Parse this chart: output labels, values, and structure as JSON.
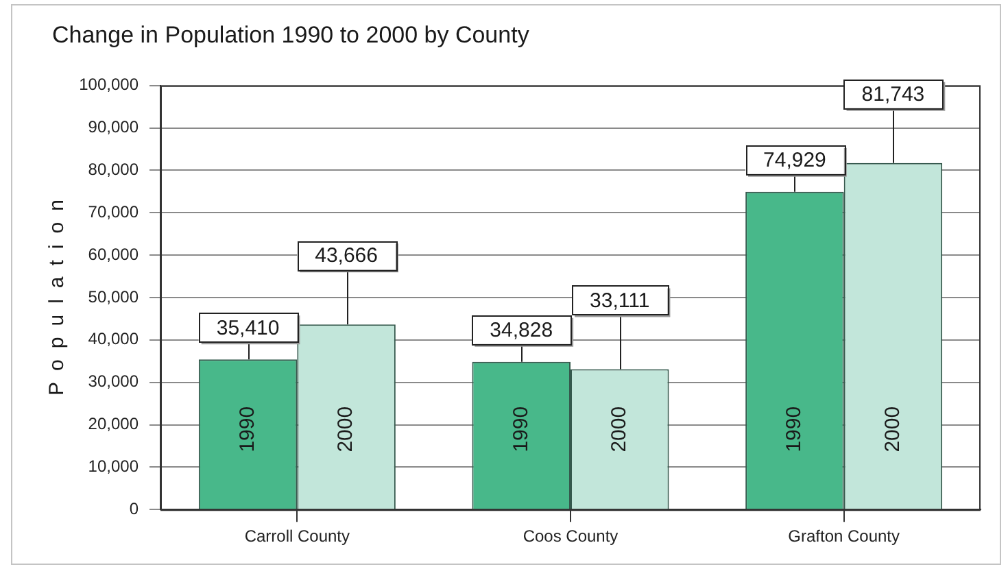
{
  "chart_data": {
    "type": "bar",
    "title": "Change in Population 1990 to 2000 by County",
    "ylabel": "Population",
    "categories": [
      "Carroll County",
      "Coos County",
      "Grafton County"
    ],
    "series": [
      {
        "name": "1990",
        "color": "#48b88a",
        "values": [
          35410,
          34828,
          74929
        ],
        "value_labels": [
          "35,410",
          "34,828",
          "74,929"
        ]
      },
      {
        "name": "2000",
        "color": "#c2e6da",
        "values": [
          43666,
          33111,
          81743
        ],
        "value_labels": [
          "43,666",
          "33,111",
          "81,743"
        ]
      }
    ],
    "ylim": [
      0,
      100000
    ],
    "yticks": [
      0,
      {
        "value": 10000,
        "label": "10,000"
      },
      {
        "value": 20000,
        "label": "20,000"
      },
      {
        "value": 30000,
        "label": "30,000"
      },
      {
        "value": 40000,
        "label": "40,000"
      },
      {
        "value": 50000,
        "label": "50,000"
      },
      {
        "value": 60000,
        "label": "60,000"
      },
      {
        "value": 70000,
        "label": "70,000"
      },
      {
        "value": 80000,
        "label": "80,000"
      },
      {
        "value": 90000,
        "label": "90,000"
      },
      {
        "value": 100000,
        "label": "100,000"
      }
    ],
    "grid": "y",
    "legend": false
  }
}
